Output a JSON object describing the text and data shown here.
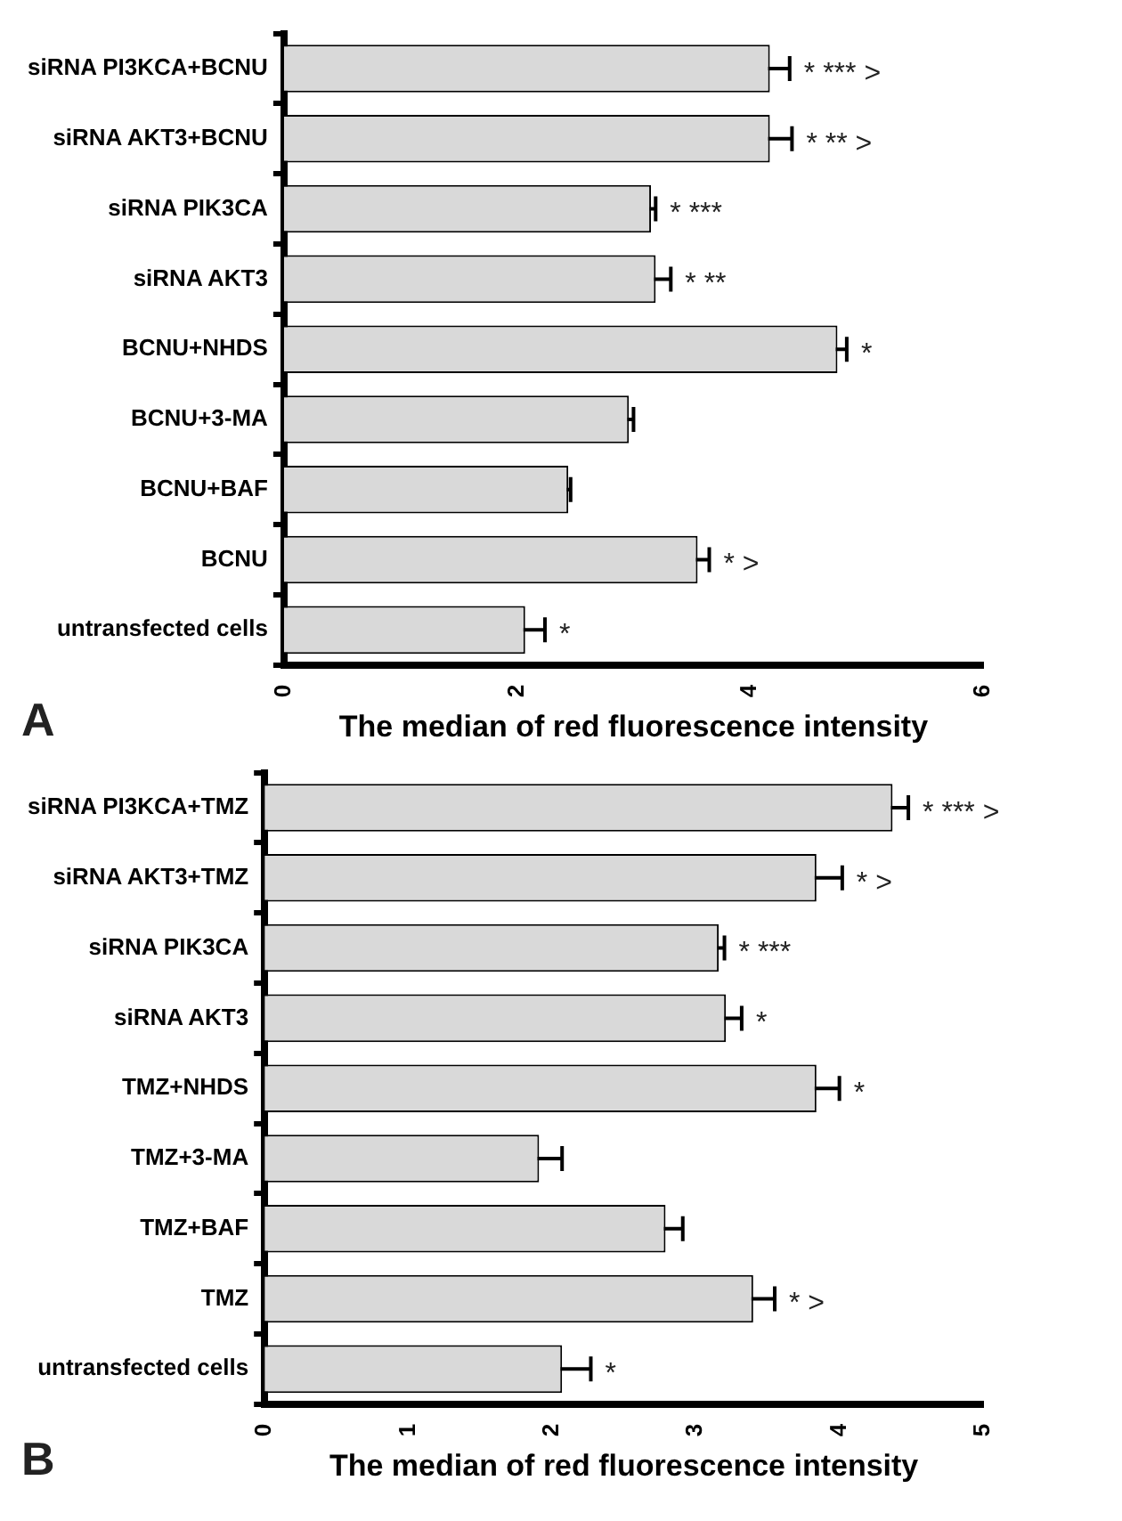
{
  "chart_data": [
    {
      "type": "bar",
      "orientation": "horizontal",
      "xlabel": "The median of red fluorescence intensity",
      "categories": [
        "siRNA PI3KCA+BCNU",
        "siRNA AKT3+BCNU",
        "siRNA PIK3CA",
        "siRNA AKT3",
        "BCNU+NHDS",
        "BCNU+3-MA",
        "BCNU+BAF",
        "BCNU",
        "untransfected cells"
      ],
      "values": [
        4.17,
        4.17,
        3.15,
        3.19,
        4.75,
        2.96,
        2.44,
        3.55,
        2.07
      ],
      "errors": [
        0.17,
        0.19,
        0.04,
        0.13,
        0.08,
        0.04,
        0.02,
        0.1,
        0.17
      ],
      "color": "#d9d9d9",
      "xlim": [
        0,
        6
      ],
      "xticks": [
        0,
        2,
        4,
        6
      ],
      "grid": false,
      "legend": false,
      "annotations": [
        "A",
        {
          "text": "* *** >",
          "x": 4.34,
          "y": "siRNA PI3KCA+BCNU"
        },
        {
          "text": "* ** >",
          "x": 4.36,
          "y": "siRNA AKT3+BCNU"
        },
        {
          "text": "* ***",
          "x": 3.19,
          "y": "siRNA PIK3CA"
        },
        {
          "text": "* **",
          "x": 3.32,
          "y": "siRNA AKT3"
        },
        {
          "text": "*",
          "x": 4.83,
          "y": "BCNU+NHDS"
        },
        {
          "text": "* >",
          "x": 3.65,
          "y": "BCNU"
        },
        {
          "text": "*",
          "x": 2.24,
          "y": "untransfected cells"
        }
      ]
    },
    {
      "type": "bar",
      "orientation": "horizontal",
      "xlabel": "The median of red fluorescence intensity",
      "categories": [
        "siRNA PI3KCA+TMZ",
        "siRNA AKT3+TMZ",
        "siRNA PIK3CA",
        "siRNA AKT3",
        "TMZ+NHDS",
        "TMZ+3-MA",
        "TMZ+BAF",
        "TMZ",
        "untransfected cells"
      ],
      "values": [
        4.37,
        3.84,
        3.16,
        3.21,
        3.84,
        1.91,
        2.79,
        3.4,
        2.07
      ],
      "errors": [
        0.11,
        0.18,
        0.04,
        0.11,
        0.16,
        0.16,
        0.12,
        0.15,
        0.2
      ],
      "color": "#d9d9d9",
      "xlim": [
        0,
        5
      ],
      "xticks": [
        0,
        1,
        2,
        3,
        4,
        5
      ],
      "grid": false,
      "legend": false,
      "annotations": [
        "B",
        {
          "text": "* *** >",
          "x": 4.48,
          "y": "siRNA PI3KCA+TMZ"
        },
        {
          "text": "* >",
          "x": 4.02,
          "y": "siRNA AKT3+TMZ"
        },
        {
          "text": "* ***",
          "x": 3.2,
          "y": "siRNA PIK3CA"
        },
        {
          "text": "*",
          "x": 3.32,
          "y": "siRNA AKT3"
        },
        {
          "text": "*",
          "x": 4.0,
          "y": "TMZ+NHDS"
        },
        {
          "text": "* >",
          "x": 3.55,
          "y": "TMZ"
        },
        {
          "text": "*",
          "x": 2.27,
          "y": "untransfected cells"
        }
      ]
    }
  ]
}
